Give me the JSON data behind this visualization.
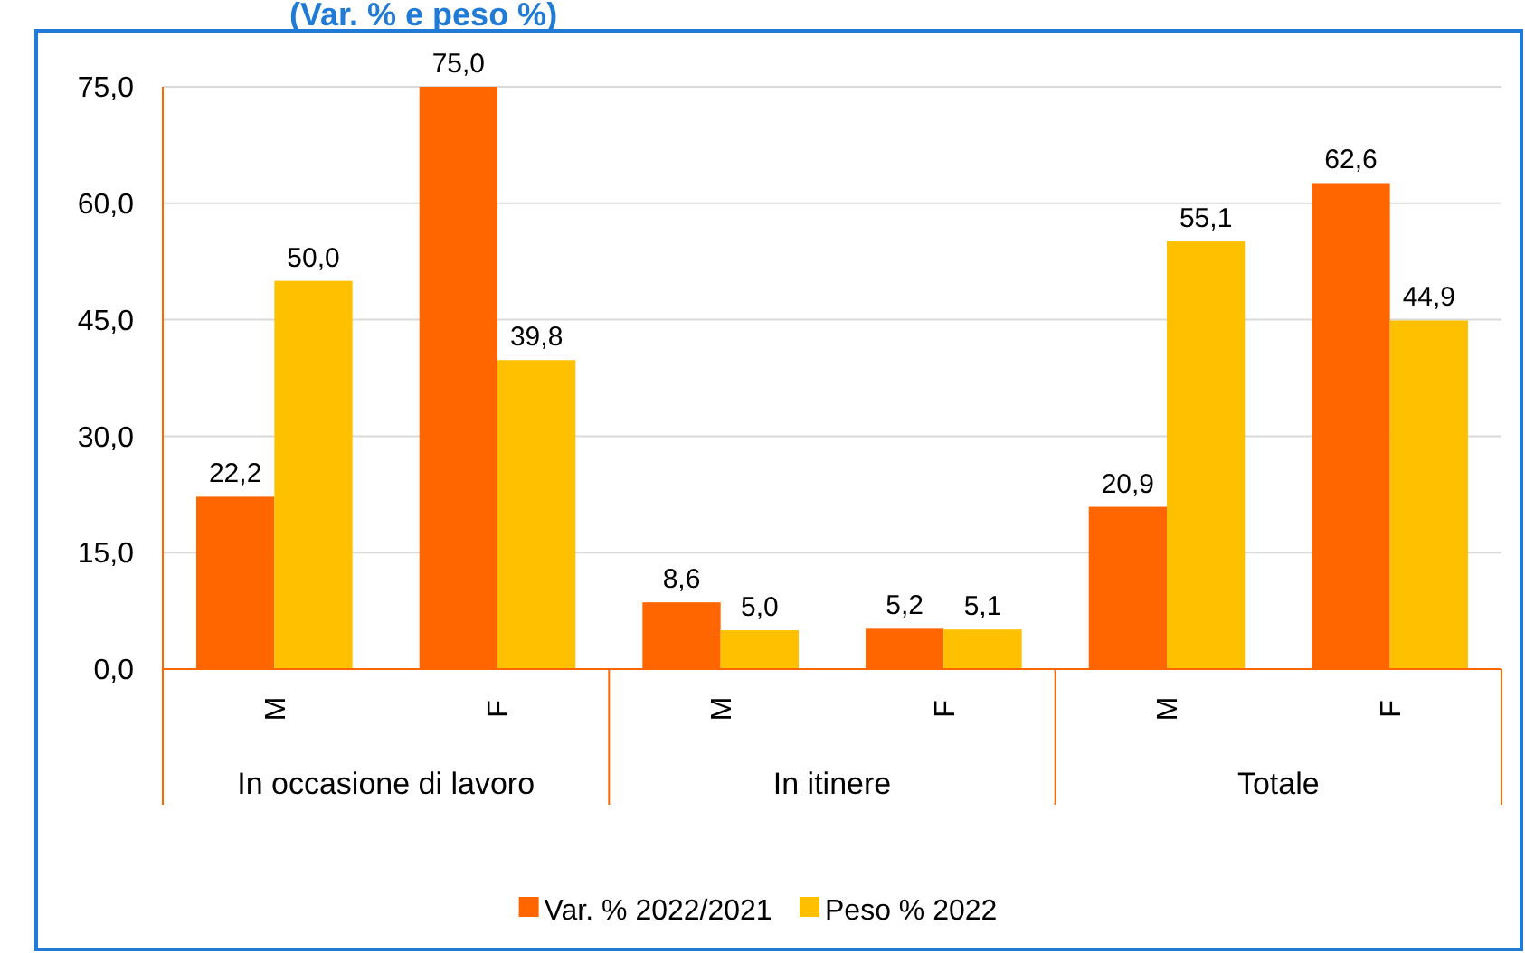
{
  "chart_data": {
    "type": "bar",
    "title": "(Var. % e peso %)",
    "categories": [
      "M",
      "F",
      "M",
      "F",
      "M",
      "F"
    ],
    "annotations": [
      "In occasione di lavoro",
      "In itinere",
      "Totale"
    ],
    "series": [
      {
        "name": "Var. % 2022/2021",
        "color": "#ff6600",
        "values": [
          22.2,
          75.0,
          8.6,
          5.2,
          20.9,
          62.6
        ],
        "value_labels": [
          "22,2",
          "75,0",
          "8,6",
          "5,2",
          "20,9",
          "62,6"
        ]
      },
      {
        "name": "Peso % 2022",
        "color": "#ffc000",
        "values": [
          50.0,
          39.8,
          5.0,
          5.1,
          55.1,
          44.9
        ],
        "value_labels": [
          "50,0",
          "39,8",
          "5,0",
          "5,1",
          "55,1",
          "44,9"
        ]
      }
    ],
    "ylim": [
      0,
      75
    ],
    "yticks": [
      {
        "value": 0,
        "label": "0,0"
      },
      {
        "value": 15,
        "label": "15,0"
      },
      {
        "value": 30,
        "label": "30,0"
      },
      {
        "value": 45,
        "label": "45,0"
      },
      {
        "value": 60,
        "label": "60,0"
      },
      {
        "value": 75,
        "label": "75,0"
      }
    ],
    "grid": "y",
    "legend": "bottom"
  }
}
